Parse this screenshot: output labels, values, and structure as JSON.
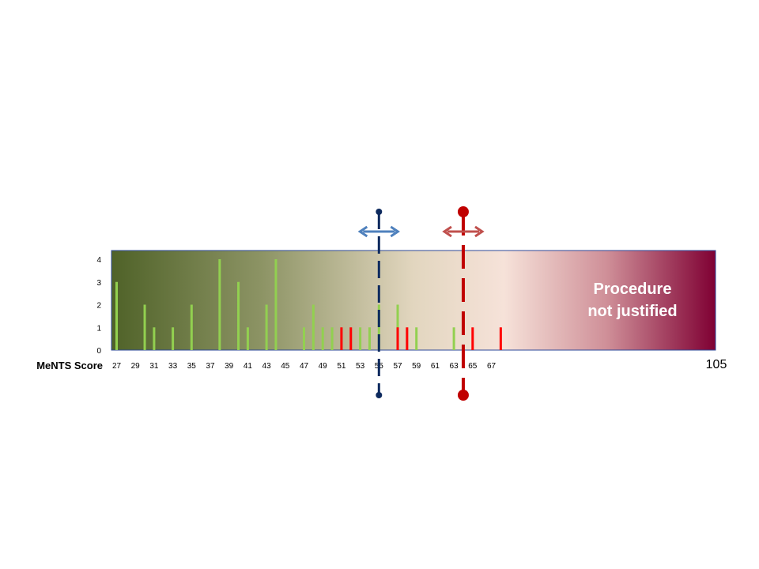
{
  "chart_data": {
    "type": "bar",
    "xlabel": "MeNTS Score",
    "x_ticks": [
      27,
      29,
      31,
      33,
      35,
      37,
      39,
      41,
      43,
      45,
      47,
      49,
      51,
      53,
      55,
      57,
      59,
      61,
      63,
      65,
      67
    ],
    "x_end_label": "105",
    "y_ticks": [
      0,
      1,
      2,
      3,
      4
    ],
    "ylim": [
      0,
      4.5
    ],
    "series": [
      {
        "color": "#92d050",
        "points": [
          [
            27,
            3
          ],
          [
            30,
            2
          ],
          [
            31,
            1
          ],
          [
            33,
            1
          ],
          [
            35,
            2
          ],
          [
            38,
            4
          ],
          [
            40,
            3
          ],
          [
            41,
            1
          ],
          [
            43,
            2
          ],
          [
            44,
            4
          ],
          [
            47,
            1
          ],
          [
            48,
            2
          ],
          [
            49,
            1
          ],
          [
            50,
            1
          ],
          [
            53,
            1
          ],
          [
            54,
            1
          ],
          [
            55,
            2
          ],
          [
            57,
            2
          ],
          [
            59,
            1
          ],
          [
            63,
            1
          ]
        ]
      },
      {
        "color": "#ff0000",
        "points": [
          [
            51,
            1
          ],
          [
            52,
            1
          ],
          [
            57,
            1
          ],
          [
            58,
            1
          ],
          [
            65,
            1
          ],
          [
            68,
            1
          ]
        ]
      }
    ],
    "thresholds": [
      {
        "value": 55,
        "line_color": "#0d2a5e",
        "arrow_color": "#4f81bd"
      },
      {
        "value": 64,
        "line_color": "#c00000",
        "arrow_color": "#c0504d"
      }
    ],
    "zone_label": [
      "Procedure",
      "not justified"
    ],
    "colors": {
      "gradient_start": "#4f6228",
      "gradient_mid": "#f2e6d9",
      "gradient_end": "#7f0033",
      "border": "#2e4a9a"
    }
  }
}
